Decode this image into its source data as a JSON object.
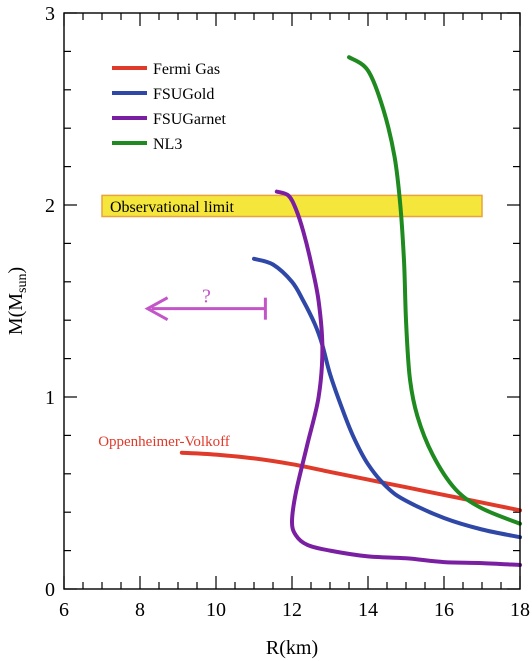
{
  "chart_data": {
    "type": "line",
    "title": "",
    "xlabel": "R(km)",
    "ylabel_main": "M(M",
    "ylabel_sub": "sun",
    "ylabel_close": ")",
    "xlim": [
      6,
      18
    ],
    "ylim": [
      0,
      3
    ],
    "xticks": [
      6,
      8,
      10,
      12,
      14,
      16,
      18
    ],
    "yticks": [
      0,
      1,
      2,
      3
    ],
    "grid": false,
    "legend_position": "top-left",
    "series": [
      {
        "name": "Fermi Gas",
        "color": "#e03a2a",
        "x": [
          9.1,
          10.0,
          11.0,
          12.0,
          13.0,
          14.0,
          15.0,
          16.0,
          17.0,
          18.0
        ],
        "y": [
          0.71,
          0.7,
          0.68,
          0.65,
          0.61,
          0.57,
          0.53,
          0.49,
          0.45,
          0.41
        ]
      },
      {
        "name": "FSUGold",
        "color": "#2f47a6",
        "x": [
          11.0,
          11.5,
          12.0,
          12.3,
          12.6,
          12.8,
          13.0,
          13.3,
          13.6,
          14.0,
          14.5,
          15.0,
          16.0,
          17.0,
          18.0
        ],
        "y": [
          1.72,
          1.69,
          1.6,
          1.5,
          1.38,
          1.27,
          1.12,
          0.95,
          0.8,
          0.65,
          0.53,
          0.46,
          0.37,
          0.31,
          0.27
        ]
      },
      {
        "name": "FSUGarnet",
        "color": "#7a1fa2",
        "x": [
          11.6,
          11.9,
          12.1,
          12.3,
          12.5,
          12.7,
          12.8,
          12.7,
          12.4,
          12.1,
          12.0,
          12.1,
          12.4,
          13.0,
          14.0,
          15.0,
          16.0,
          17.0,
          18.0
        ],
        "y": [
          2.07,
          2.05,
          1.98,
          1.86,
          1.7,
          1.5,
          1.25,
          1.0,
          0.75,
          0.5,
          0.35,
          0.28,
          0.23,
          0.2,
          0.17,
          0.16,
          0.14,
          0.135,
          0.125
        ]
      },
      {
        "name": "NL3",
        "color": "#1f8a1f",
        "x": [
          13.5,
          14.0,
          14.4,
          14.7,
          14.85,
          14.95,
          15.0,
          15.1,
          15.3,
          15.7,
          16.3,
          17.0,
          18.0
        ],
        "y": [
          2.77,
          2.7,
          2.5,
          2.25,
          2.0,
          1.7,
          1.4,
          1.1,
          0.9,
          0.7,
          0.52,
          0.42,
          0.34
        ]
      }
    ],
    "band": {
      "label": "Observational limit",
      "x0": 7.0,
      "x1": 17.0,
      "y0": 1.94,
      "y1": 2.05,
      "fill": "#f5e63c",
      "stroke": "#e8a33c"
    },
    "arrow": {
      "label": "?",
      "x_from": 11.3,
      "x_to": 8.2,
      "y": 1.46,
      "color": "#c355c8"
    },
    "annotations": [
      {
        "text": "Oppenheimer-Volkoff",
        "x": 6.9,
        "y": 0.77,
        "color": "#e03a2a"
      }
    ]
  }
}
